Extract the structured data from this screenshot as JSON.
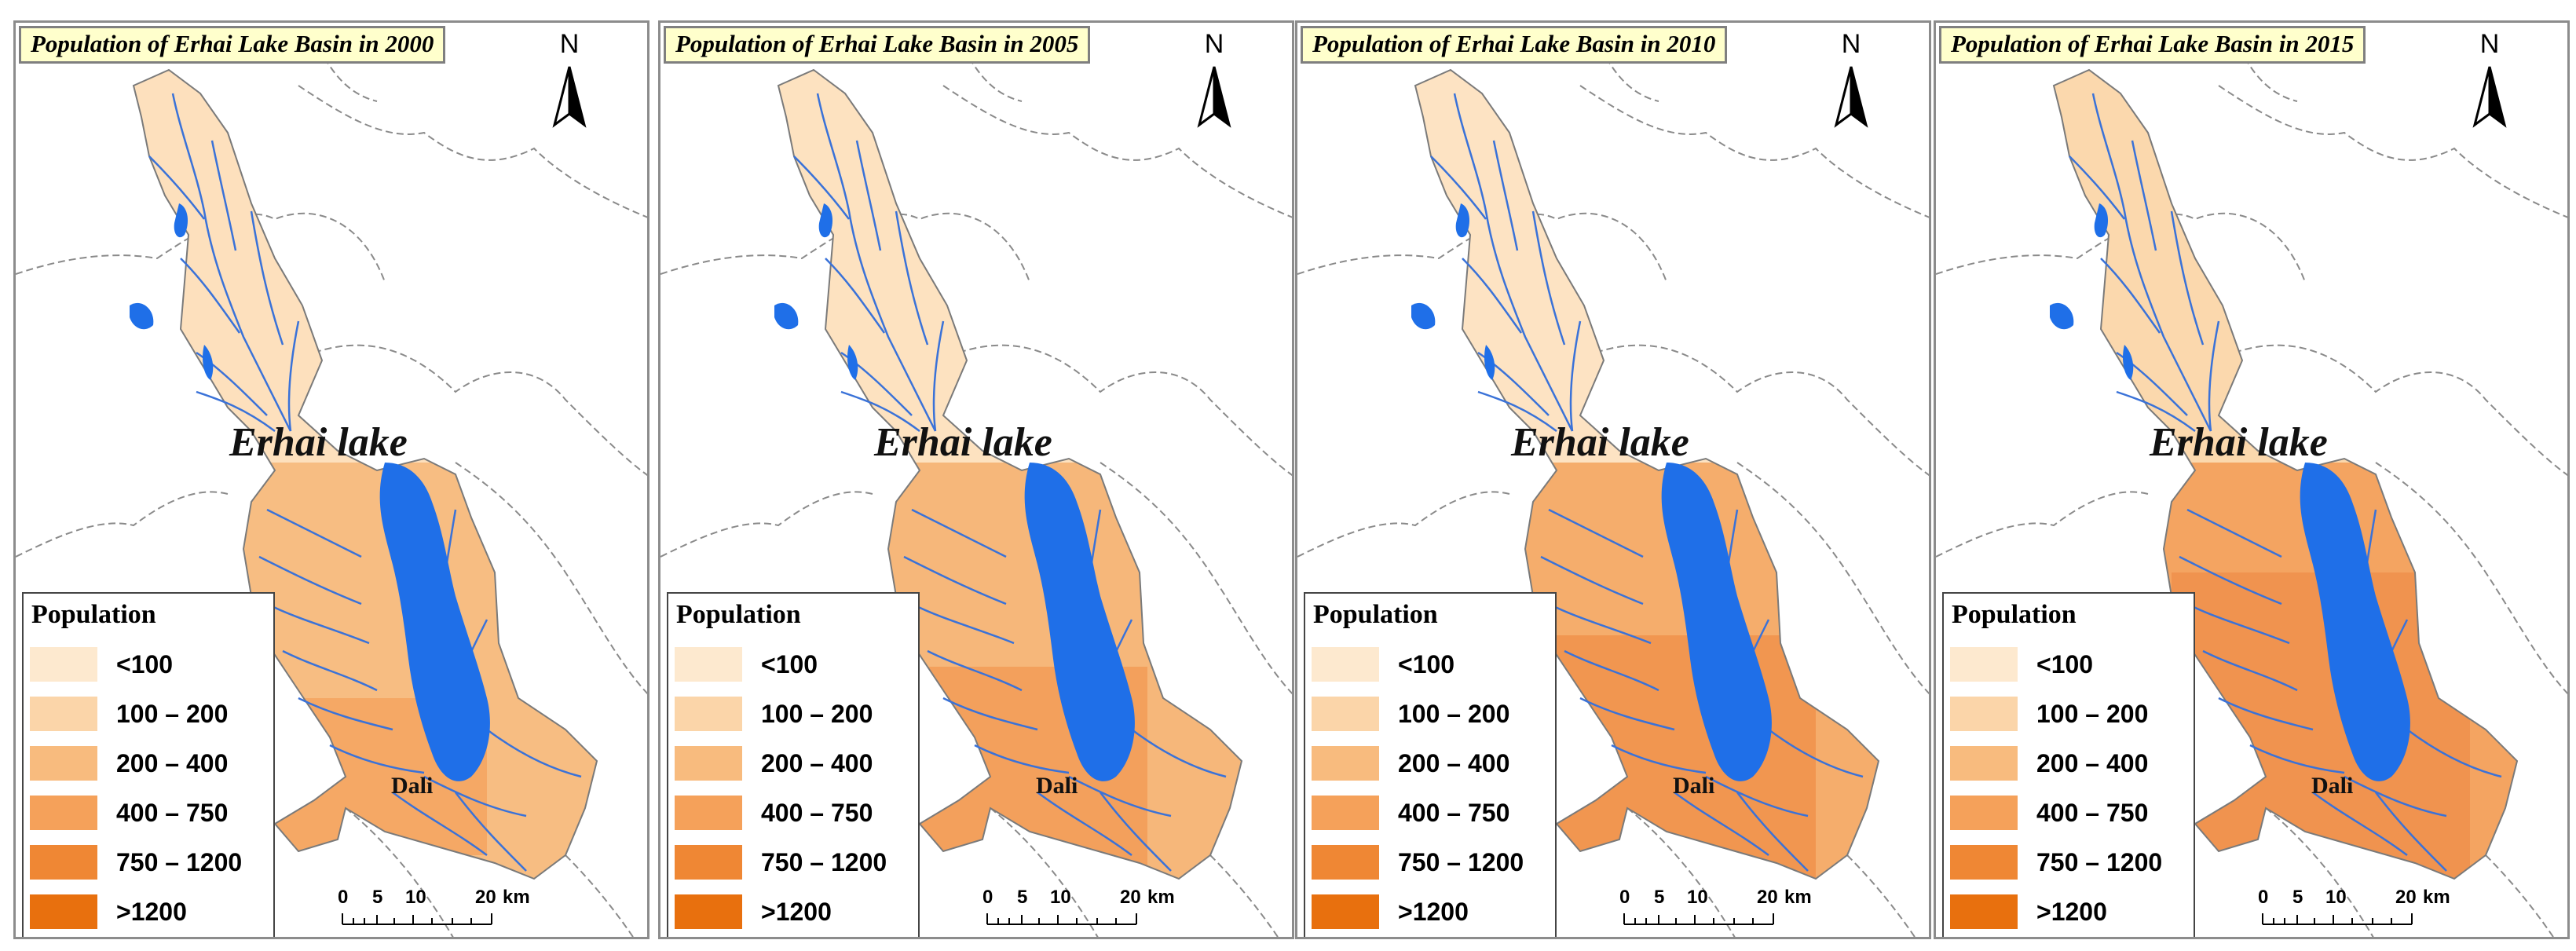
{
  "panels": [
    {
      "title": "Population of Erhai Lake Basin in 2000",
      "shade": "2000"
    },
    {
      "title": "Population of Erhai Lake Basin in 2005",
      "shade": "2005"
    },
    {
      "title": "Population of Erhai Lake Basin in 2010",
      "shade": "2010"
    },
    {
      "title": "Population of Erhai Lake Basin in 2015",
      "shade": "2015"
    }
  ],
  "north_label": "N",
  "lake_label": "Erhai lake",
  "city_label": "Dali",
  "legend": {
    "title": "Population",
    "classes": [
      {
        "label": "<100",
        "color": "#fde9cf"
      },
      {
        "label": "100 – 200",
        "color": "#fbd5a9"
      },
      {
        "label": "200 – 400",
        "color": "#f8bb7e"
      },
      {
        "label": "400 – 750",
        "color": "#f5a15a"
      },
      {
        "label": "750 – 1200",
        "color": "#ef8734"
      },
      {
        "label": ">1200",
        "color": "#e8700e"
      }
    ]
  },
  "scale": {
    "ticks": [
      "0",
      "5",
      "10",
      "20"
    ],
    "unit": "km"
  },
  "colors": {
    "lake": "#1f6fe8",
    "river": "#3a72d8",
    "boundary": "#888888"
  }
}
